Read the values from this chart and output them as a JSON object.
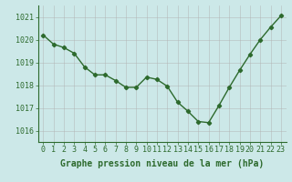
{
  "x": [
    0,
    1,
    2,
    3,
    4,
    5,
    6,
    7,
    8,
    9,
    10,
    11,
    12,
    13,
    14,
    15,
    16,
    17,
    18,
    19,
    20,
    21,
    22,
    23
  ],
  "y": [
    1020.2,
    1019.8,
    1019.65,
    1019.4,
    1018.8,
    1018.45,
    1018.45,
    1018.2,
    1017.9,
    1017.9,
    1018.35,
    1018.25,
    1017.95,
    1017.25,
    1016.85,
    1016.4,
    1016.35,
    1017.1,
    1017.9,
    1018.65,
    1019.35,
    1020.0,
    1020.55,
    1021.05
  ],
  "ylim": [
    1015.5,
    1021.5
  ],
  "yticks": [
    1016,
    1017,
    1018,
    1019,
    1020,
    1021
  ],
  "xticks": [
    0,
    1,
    2,
    3,
    4,
    5,
    6,
    7,
    8,
    9,
    10,
    11,
    12,
    13,
    14,
    15,
    16,
    17,
    18,
    19,
    20,
    21,
    22,
    23
  ],
  "xlabel": "Graphe pression niveau de la mer (hPa)",
  "line_color": "#2d6a2d",
  "marker": "D",
  "marker_size": 2.2,
  "line_width": 1.0,
  "bg_color": "#cce8e8",
  "grid_color": "#b0b0b0",
  "label_color": "#2d6a2d",
  "xlabel_color": "#2d6a2d",
  "xlabel_fontsize": 7,
  "tick_fontsize": 6,
  "spine_color": "#2d6a2d"
}
